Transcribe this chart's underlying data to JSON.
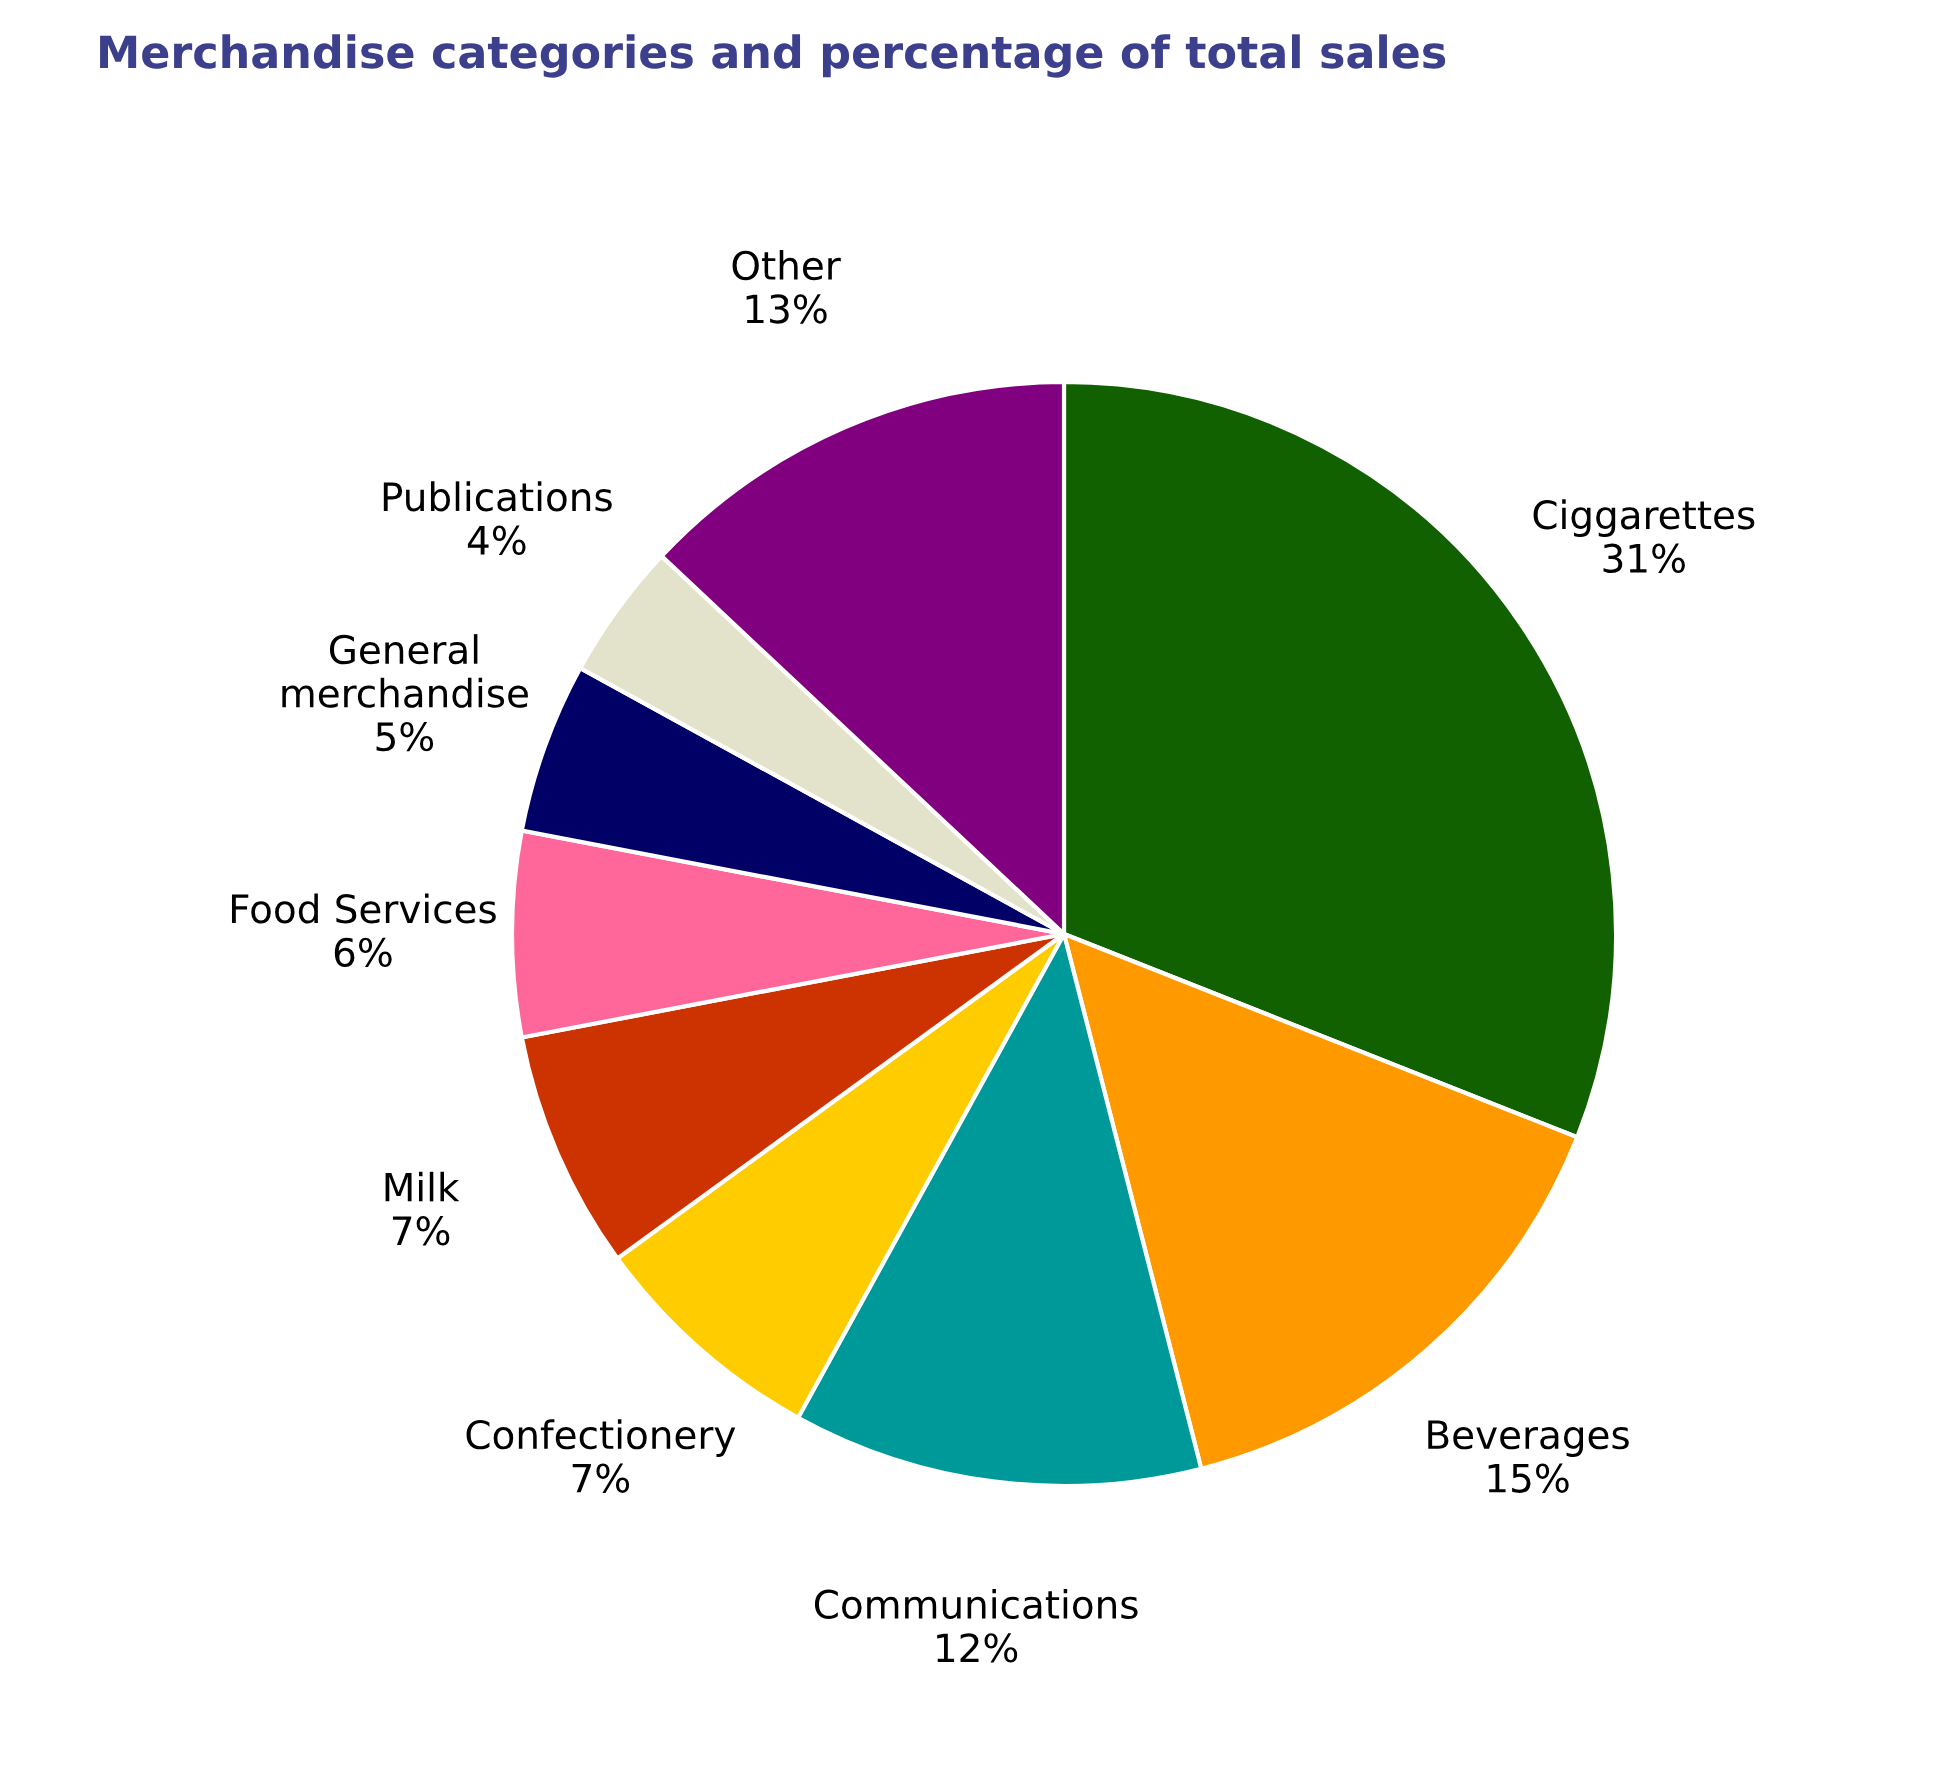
{
  "chart_data": {
    "type": "pie",
    "title": "Merchandise categories and percentage of total sales",
    "categories": [
      "Ciggarettes",
      "Beverages",
      "Communications",
      "Confectionery",
      "Milk",
      "Food Services",
      "General\nmerchandise",
      "Publications",
      "Other"
    ],
    "values": [
      31,
      15,
      12,
      7,
      7,
      6,
      5,
      4,
      13
    ],
    "value_labels": [
      "31%",
      "15%",
      "12%",
      "7%",
      "7%",
      "6%",
      "5%",
      "4%",
      "13%"
    ],
    "colors": [
      "#116100",
      "#ff9900",
      "#009999",
      "#ffcc00",
      "#cc3300",
      "#ff6699",
      "#000066",
      "#e3e3cc",
      "#800080"
    ],
    "legend": false
  }
}
